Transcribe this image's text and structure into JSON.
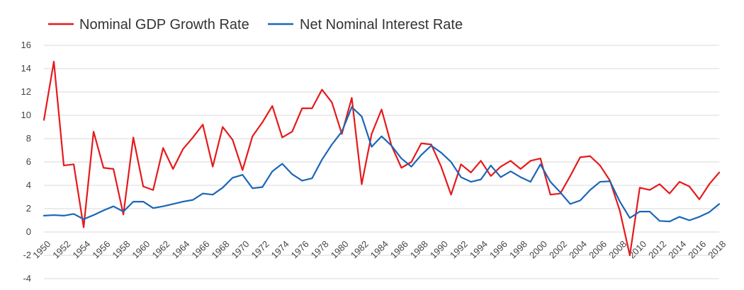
{
  "chart_data": {
    "type": "line",
    "title": "",
    "xlabel": "",
    "ylabel": "",
    "ylim": [
      -4,
      16
    ],
    "yticks": [
      -4,
      -2,
      0,
      2,
      4,
      6,
      8,
      10,
      12,
      14,
      16
    ],
    "xlim": [
      1950,
      2018
    ],
    "xticks": [
      1950,
      1952,
      1954,
      1956,
      1958,
      1960,
      1962,
      1964,
      1966,
      1968,
      1970,
      1972,
      1974,
      1976,
      1978,
      1980,
      1982,
      1984,
      1986,
      1988,
      1990,
      1992,
      1994,
      1996,
      1998,
      2000,
      2002,
      2004,
      2006,
      2008,
      2010,
      2012,
      2014,
      2016,
      2018
    ],
    "grid": true,
    "legend_position": "top-left",
    "x": [
      1950,
      1951,
      1952,
      1953,
      1954,
      1955,
      1956,
      1957,
      1958,
      1959,
      1960,
      1961,
      1962,
      1963,
      1964,
      1965,
      1966,
      1967,
      1968,
      1969,
      1970,
      1971,
      1972,
      1973,
      1974,
      1975,
      1976,
      1977,
      1978,
      1979,
      1980,
      1981,
      1982,
      1983,
      1984,
      1985,
      1986,
      1987,
      1988,
      1989,
      1990,
      1991,
      1992,
      1993,
      1994,
      1995,
      1996,
      1997,
      1998,
      1999,
      2000,
      2001,
      2002,
      2003,
      2004,
      2005,
      2006,
      2007,
      2008,
      2009,
      2010,
      2011,
      2012,
      2013,
      2014,
      2015,
      2016,
      2017,
      2018
    ],
    "series": [
      {
        "name": "Nominal GDP Growth Rate",
        "color": "#e5191b",
        "values": [
          9.6,
          14.6,
          5.7,
          5.8,
          0.4,
          8.6,
          5.5,
          5.4,
          1.5,
          8.1,
          3.9,
          3.6,
          7.2,
          5.4,
          7.1,
          8.1,
          9.2,
          5.6,
          9.0,
          7.9,
          5.3,
          8.2,
          9.4,
          10.8,
          8.1,
          8.6,
          10.6,
          10.6,
          12.2,
          11.1,
          8.4,
          11.5,
          4.1,
          8.4,
          10.5,
          7.4,
          5.5,
          6.0,
          7.6,
          7.5,
          5.6,
          3.2,
          5.8,
          5.1,
          6.1,
          4.8,
          5.6,
          6.1,
          5.4,
          6.1,
          6.3,
          3.2,
          3.3,
          4.8,
          6.4,
          6.5,
          5.7,
          4.4,
          1.8,
          -2.0,
          3.8,
          3.6,
          4.1,
          3.3,
          4.3,
          3.9,
          2.8,
          4.1,
          5.1
        ]
      },
      {
        "name": "Net Nominal Interest Rate",
        "color": "#1a66b8",
        "values": [
          1.4,
          1.45,
          1.4,
          1.55,
          1.1,
          1.45,
          1.85,
          2.2,
          1.75,
          2.6,
          2.6,
          2.05,
          2.2,
          2.4,
          2.6,
          2.75,
          3.3,
          3.2,
          3.8,
          4.65,
          4.9,
          3.75,
          3.85,
          5.2,
          5.85,
          4.95,
          4.4,
          4.6,
          6.2,
          7.5,
          8.6,
          10.7,
          9.9,
          7.3,
          8.2,
          7.4,
          6.3,
          5.6,
          6.6,
          7.4,
          6.8,
          6.0,
          4.7,
          4.3,
          4.5,
          5.7,
          4.7,
          5.2,
          4.7,
          4.3,
          5.8,
          4.3,
          3.4,
          2.4,
          2.7,
          3.6,
          4.3,
          4.35,
          2.6,
          1.2,
          1.75,
          1.75,
          0.95,
          0.9,
          1.3,
          1.0,
          1.3,
          1.7,
          2.4
        ]
      }
    ]
  }
}
